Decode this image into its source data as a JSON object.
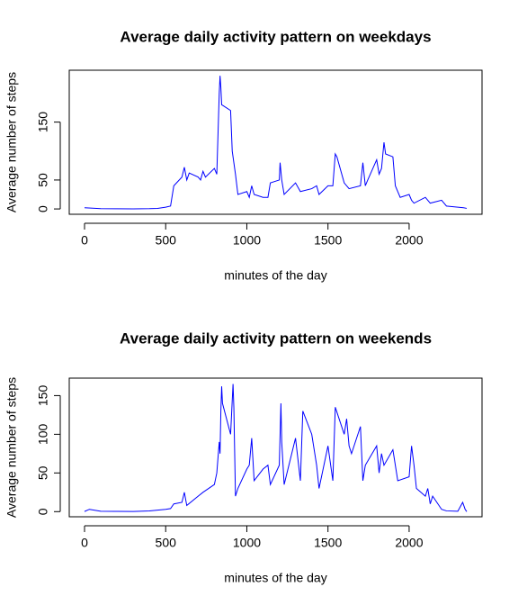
{
  "chart_data": [
    {
      "type": "line",
      "title": "Average daily activity pattern on weekdays",
      "xlabel": "minutes of the day",
      "ylabel": "Average number of steps",
      "xlim": [
        -94.2,
        2449.2
      ],
      "ylim": [
        -9.2,
        239.6
      ],
      "xticks": [
        0,
        500,
        1000,
        1500,
        2000
      ],
      "yticks": [
        0,
        50,
        150
      ],
      "x": [
        0,
        100,
        200,
        300,
        400,
        450,
        500,
        530,
        550,
        600,
        615,
        630,
        645,
        700,
        715,
        730,
        745,
        800,
        815,
        830,
        835,
        840,
        845,
        900,
        910,
        930,
        945,
        1000,
        1015,
        1030,
        1045,
        1100,
        1130,
        1145,
        1200,
        1205,
        1215,
        1230,
        1300,
        1330,
        1400,
        1430,
        1445,
        1500,
        1530,
        1545,
        1555,
        1600,
        1630,
        1700,
        1715,
        1730,
        1745,
        1800,
        1815,
        1830,
        1845,
        1855,
        1900,
        1915,
        1930,
        1945,
        2000,
        2015,
        2030,
        2100,
        2130,
        2200,
        2230,
        2300,
        2335,
        2355
      ],
      "series": [
        {
          "name": "weekday",
          "color": "#0000ff",
          "values": [
            2,
            0.5,
            0.3,
            0.2,
            0.5,
            1,
            3,
            5,
            40,
            55,
            72,
            50,
            62,
            55,
            50,
            65,
            55,
            70,
            60,
            200,
            230,
            210,
            180,
            170,
            100,
            60,
            25,
            30,
            20,
            40,
            25,
            20,
            20,
            45,
            50,
            80,
            50,
            25,
            45,
            30,
            35,
            40,
            25,
            40,
            40,
            95,
            90,
            45,
            35,
            40,
            80,
            40,
            50,
            85,
            60,
            70,
            115,
            95,
            90,
            40,
            30,
            20,
            25,
            15,
            10,
            20,
            10,
            15,
            5,
            3,
            2,
            1
          ]
        }
      ]
    },
    {
      "type": "line",
      "title": "Average daily activity pattern on weekends",
      "xlabel": "minutes of the day",
      "ylabel": "Average number of steps",
      "xlim": [
        -94.2,
        2449.2
      ],
      "ylim": [
        -6.64,
        172.6
      ],
      "xticks": [
        0,
        500,
        1000,
        1500,
        2000
      ],
      "yticks": [
        0,
        50,
        100,
        150
      ],
      "x": [
        0,
        30,
        100,
        200,
        300,
        400,
        450,
        500,
        530,
        550,
        600,
        615,
        630,
        700,
        730,
        800,
        815,
        830,
        835,
        840,
        845,
        850,
        900,
        915,
        920,
        930,
        945,
        1000,
        1015,
        1030,
        1045,
        1100,
        1130,
        1145,
        1200,
        1210,
        1215,
        1230,
        1300,
        1330,
        1345,
        1400,
        1430,
        1445,
        1500,
        1530,
        1545,
        1600,
        1615,
        1630,
        1645,
        1700,
        1715,
        1730,
        1800,
        1815,
        1830,
        1845,
        1900,
        1930,
        2000,
        2015,
        2030,
        2045,
        2100,
        2115,
        2130,
        2145,
        2200,
        2230,
        2300,
        2330,
        2345,
        2355
      ],
      "series": [
        {
          "name": "weekend",
          "color": "#0000ff",
          "values": [
            0.2,
            3,
            0.5,
            0.3,
            0.2,
            1,
            2,
            3,
            4,
            10,
            12,
            25,
            8,
            20,
            25,
            35,
            50,
            90,
            75,
            130,
            162,
            140,
            100,
            165,
            135,
            20,
            30,
            55,
            60,
            95,
            40,
            55,
            60,
            35,
            60,
            140,
            90,
            35,
            95,
            40,
            130,
            100,
            60,
            30,
            85,
            40,
            135,
            100,
            120,
            85,
            75,
            110,
            40,
            60,
            85,
            50,
            75,
            60,
            80,
            40,
            45,
            85,
            60,
            30,
            20,
            30,
            10,
            20,
            3,
            1,
            0.5,
            12,
            3,
            0
          ]
        }
      ]
    }
  ]
}
